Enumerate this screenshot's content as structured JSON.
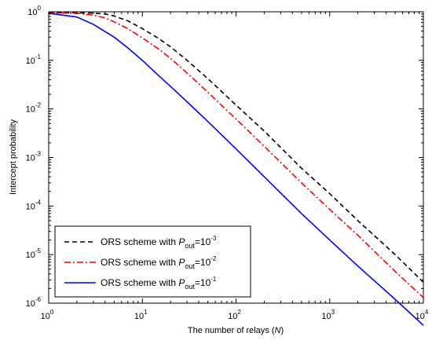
{
  "chart_data": {
    "type": "line",
    "xlabel": "The number of relays (N)",
    "ylabel": "Intercept probability",
    "x_scale": "log",
    "y_scale": "log",
    "xlim": [
      1,
      10000
    ],
    "ylim": [
      1e-06,
      1
    ],
    "grid": false,
    "legend_position": "bottom-left",
    "x_ticks": [
      {
        "base": "10",
        "exp": "0"
      },
      {
        "base": "10",
        "exp": "1"
      },
      {
        "base": "10",
        "exp": "2"
      },
      {
        "base": "10",
        "exp": "3"
      },
      {
        "base": "10",
        "exp": "4"
      }
    ],
    "y_ticks": [
      {
        "base": "10",
        "exp": "-6"
      },
      {
        "base": "10",
        "exp": "-5"
      },
      {
        "base": "10",
        "exp": "-4"
      },
      {
        "base": "10",
        "exp": "-3"
      },
      {
        "base": "10",
        "exp": "-2"
      },
      {
        "base": "10",
        "exp": "-1"
      },
      {
        "base": "10",
        "exp": "0"
      }
    ],
    "series": [
      {
        "name": "ORS scheme with P_out=10^-3",
        "legend": {
          "prefix": "ORS scheme with ",
          "var": "P",
          "sub": "out",
          "eq": "=10",
          "exp": "-3"
        },
        "color": "#000000",
        "dash": "6,4",
        "x": [
          1,
          2,
          3,
          4,
          5,
          7,
          10,
          15,
          20,
          30,
          50,
          100,
          200,
          500,
          1000,
          2000,
          5000,
          10000
        ],
        "y": [
          0.95,
          0.95,
          0.94,
          0.9,
          0.82,
          0.65,
          0.45,
          0.28,
          0.19,
          0.1,
          0.042,
          0.012,
          0.0035,
          0.0006,
          0.00018,
          5e-05,
          1e-05,
          2.7e-06
        ]
      },
      {
        "name": "ORS scheme with P_out=10^-2",
        "legend": {
          "prefix": "ORS scheme with ",
          "var": "P",
          "sub": "out",
          "eq": "=10",
          "exp": "-2"
        },
        "color": "#ff0000",
        "dash": "8,3,2,3",
        "x": [
          1,
          2,
          3,
          4,
          5,
          7,
          10,
          15,
          20,
          30,
          50,
          100,
          200,
          500,
          1000,
          2000,
          5000,
          10000
        ],
        "y": [
          0.95,
          0.93,
          0.85,
          0.75,
          0.62,
          0.45,
          0.29,
          0.17,
          0.11,
          0.055,
          0.022,
          0.0062,
          0.0017,
          0.0003,
          8.5e-05,
          2.5e-05,
          4.5e-06,
          1.3e-06
        ]
      },
      {
        "name": "ORS scheme with P_out=10^-1",
        "legend": {
          "prefix": "ORS scheme with ",
          "var": "P",
          "sub": "out",
          "eq": "=10",
          "exp": "-1"
        },
        "color": "#0000ff",
        "dash": "",
        "x": [
          1,
          2,
          3,
          5,
          7,
          10,
          15,
          20,
          30,
          50,
          100,
          200,
          500,
          1000,
          2000,
          5000,
          10000
        ],
        "y": [
          0.93,
          0.78,
          0.55,
          0.3,
          0.18,
          0.1,
          0.048,
          0.029,
          0.014,
          0.0055,
          0.0015,
          0.0004,
          7e-05,
          2e-05,
          5.8e-06,
          1.2e-06,
          3.5e-07
        ]
      }
    ]
  }
}
